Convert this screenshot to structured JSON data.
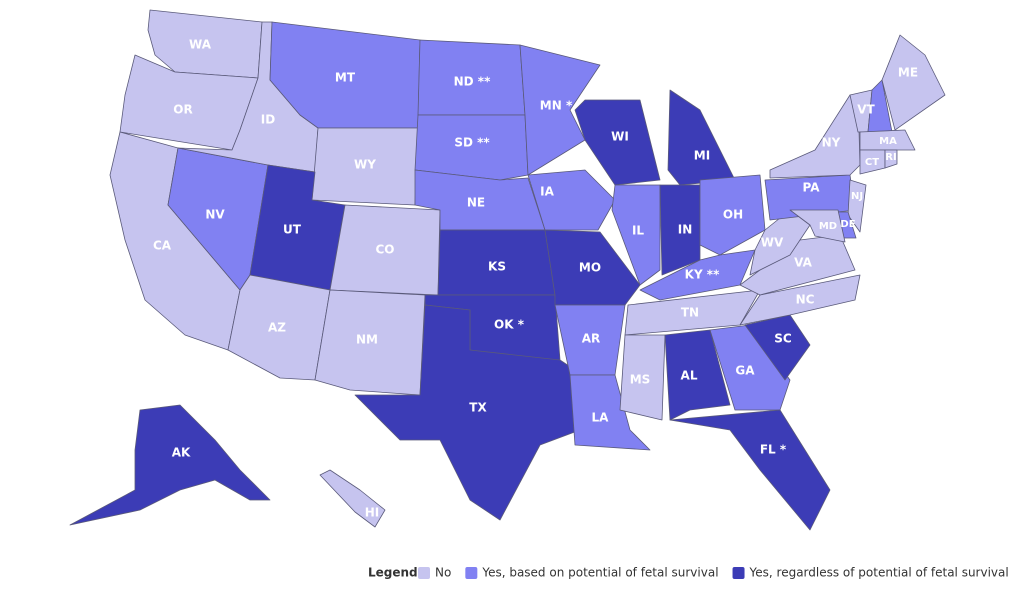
{
  "states": [
    {
      "label": "WA",
      "category": 0
    },
    {
      "label": "OR",
      "category": 0
    },
    {
      "label": "CA",
      "category": 0
    },
    {
      "label": "NV",
      "category": 1
    },
    {
      "label": "ID",
      "category": 0
    },
    {
      "label": "MT",
      "category": 1
    },
    {
      "label": "WY",
      "category": 0
    },
    {
      "label": "UT",
      "category": 2
    },
    {
      "label": "CO",
      "category": 0
    },
    {
      "label": "AZ",
      "category": 0
    },
    {
      "label": "NM",
      "category": 0
    },
    {
      "label": "ND **",
      "category": 1
    },
    {
      "label": "SD **",
      "category": 1
    },
    {
      "label": "NE",
      "category": 1
    },
    {
      "label": "KS",
      "category": 2
    },
    {
      "label": "OK *",
      "category": 2
    },
    {
      "label": "TX",
      "category": 2
    },
    {
      "label": "MN *",
      "category": 1
    },
    {
      "label": "IA",
      "category": 1
    },
    {
      "label": "MO",
      "category": 2
    },
    {
      "label": "AR",
      "category": 1
    },
    {
      "label": "LA",
      "category": 1
    },
    {
      "label": "WI",
      "category": 2
    },
    {
      "label": "IL",
      "category": 1
    },
    {
      "label": "MI",
      "category": 2
    },
    {
      "label": "IN",
      "category": 2
    },
    {
      "label": "OH",
      "category": 1
    },
    {
      "label": "KY **",
      "category": 1
    },
    {
      "label": "TN",
      "category": 0
    },
    {
      "label": "MS",
      "category": 0
    },
    {
      "label": "AL",
      "category": 2
    },
    {
      "label": "GA",
      "category": 1
    },
    {
      "label": "FL *",
      "category": 2
    },
    {
      "label": "SC",
      "category": 2
    },
    {
      "label": "NC",
      "category": 0
    },
    {
      "label": "VA",
      "category": 0
    },
    {
      "label": "WV",
      "category": 0
    },
    {
      "label": "PA",
      "category": 1
    },
    {
      "label": "NY",
      "category": 0
    },
    {
      "label": "VT",
      "category": 0
    },
    {
      "category": 1
    },
    {
      "label": "ME",
      "category": 0
    },
    {
      "label": "MA",
      "category": 0
    },
    {
      "label": "CT",
      "category": 0
    },
    {
      "label": "RI",
      "category": 0
    },
    {
      "label": "NJ",
      "category": 0
    },
    {
      "label": "DE",
      "category": 1
    },
    {
      "label": "MD",
      "category": 0
    },
    {
      "label": "AK",
      "category": 2
    },
    {
      "label": "HI",
      "category": 0
    }
  ],
  "legend": {
    "title": "Legend",
    "items": [
      {
        "label": "No",
        "color": "#c6c4ef"
      },
      {
        "label": "Yes, based on potential of fetal survival",
        "color": "#8181f2"
      },
      {
        "label": "Yes, regardless of potential of fetal survival",
        "color": "#3c3cb6"
      }
    ]
  }
}
